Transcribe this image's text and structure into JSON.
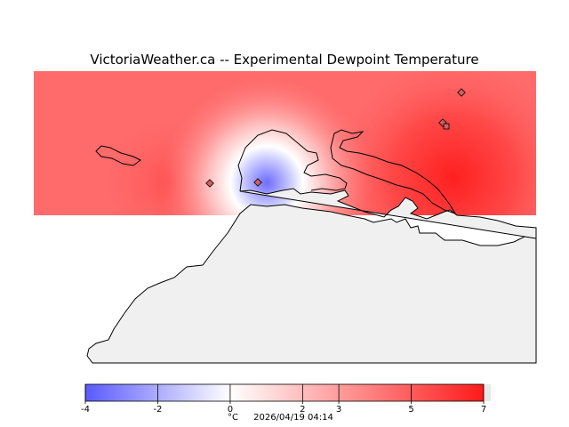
{
  "title": "VictoriaWeather.ca -- Experimental Dewpoint Temperature",
  "colorbar": {
    "min": -4,
    "max": 7,
    "ticks": [
      "-4",
      "-2",
      "0",
      "2",
      "3",
      "5",
      "7"
    ],
    "tick_values": [
      -4,
      -2,
      0,
      2,
      3,
      5,
      7
    ],
    "negative_color": "#5a5aff",
    "zero_color": "#ffffff",
    "positive_color": "#ff1a1a"
  },
  "footer": {
    "unit": "°C",
    "timestamp": "2026/04/19 04:14"
  },
  "colors": {
    "land": "#f0f0f0",
    "coastline": "#000000",
    "station_marker": "#d06060"
  },
  "stations": [
    {
      "id": "west",
      "value": 4.5
    },
    {
      "id": "central",
      "value": -3.5
    },
    {
      "id": "east-1",
      "value": 6.0
    },
    {
      "id": "east-2",
      "value": 6.0
    },
    {
      "id": "east-3",
      "value": 6.0
    }
  ]
}
